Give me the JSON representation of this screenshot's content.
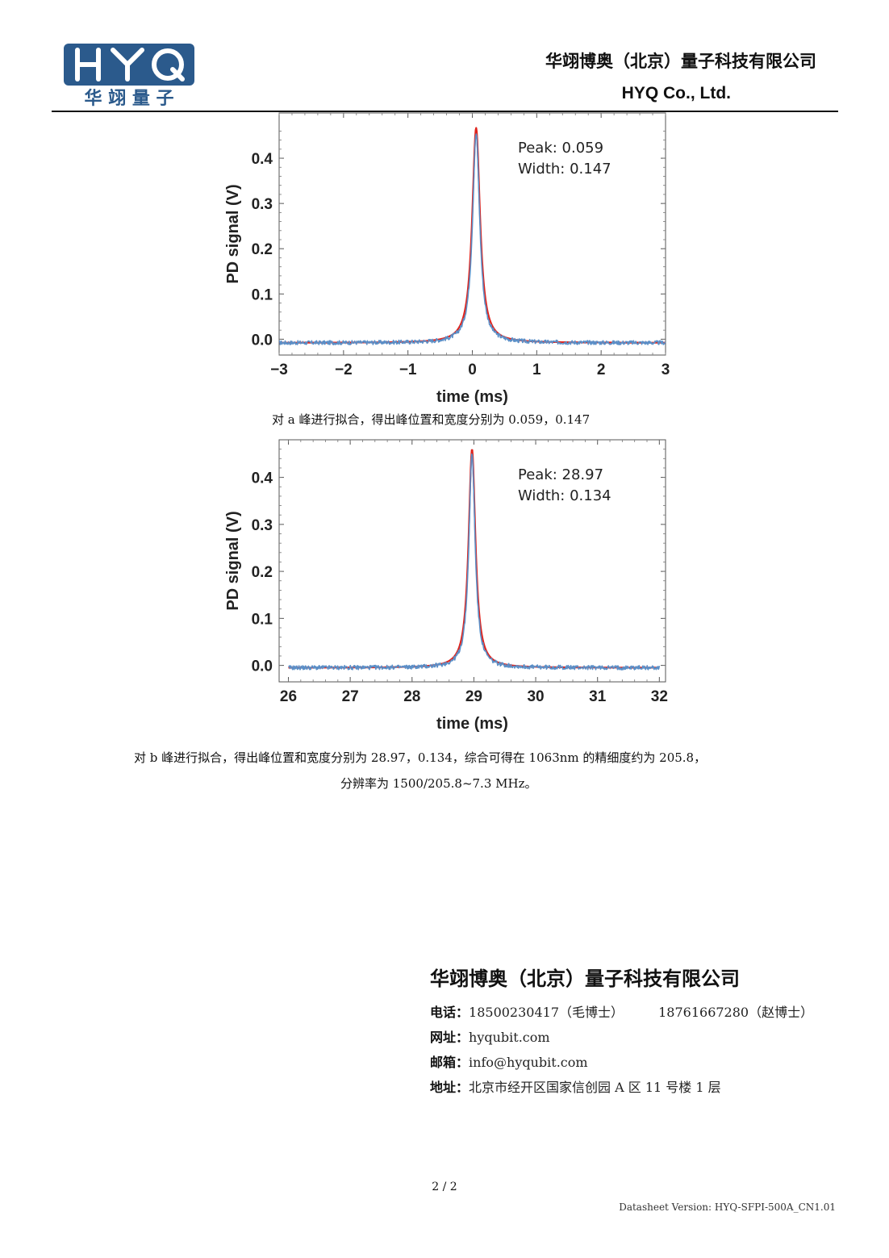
{
  "header": {
    "logo_text": "HYQ",
    "logo_subtitle": "华 翊 量 子",
    "company_cn": "华翊博奥（北京）量子科技有限公司",
    "company_en": "HYQ Co., Ltd."
  },
  "colors": {
    "brand_blue": "#2b5a8c",
    "fit_red": "#e0231c",
    "data_blue": "#5b8fc7"
  },
  "chart_data": [
    {
      "type": "line",
      "xlabel": "time (ms)",
      "ylabel": "PD signal (V)",
      "xlim": [
        -3,
        3
      ],
      "ylim": [
        -0.035,
        0.5
      ],
      "x_ticks": [
        -3,
        -2,
        -1,
        0,
        1,
        2,
        3
      ],
      "x_tick_labels": [
        "−3",
        "−2",
        "−1",
        "0",
        "1",
        "2",
        "3"
      ],
      "y_ticks": [
        0.0,
        0.1,
        0.2,
        0.3,
        0.4
      ],
      "y_tick_labels": [
        "0.0",
        "0.1",
        "0.2",
        "0.3",
        "0.4"
      ],
      "annotations": [
        "Peak: 0.059",
        "Width: 0.147"
      ],
      "series": [
        {
          "kind": "fit",
          "color": "#e0231c",
          "center": 0.059,
          "fwhm": 0.147,
          "amplitude": 0.475,
          "baseline": -0.008
        },
        {
          "kind": "data",
          "color": "#5b8fc7",
          "center": 0.059,
          "fwhm": 0.135,
          "amplitude": 0.462,
          "baseline": -0.008
        }
      ]
    },
    {
      "type": "line",
      "xlabel": "time (ms)",
      "ylabel": "PD signal (V)",
      "xlim": [
        25.85,
        32.1
      ],
      "ylim": [
        -0.035,
        0.48
      ],
      "x_ticks": [
        26,
        27,
        28,
        29,
        30,
        31,
        32
      ],
      "x_tick_labels": [
        "26",
        "27",
        "28",
        "29",
        "30",
        "31",
        "32"
      ],
      "y_ticks": [
        0.0,
        0.1,
        0.2,
        0.3,
        0.4
      ],
      "y_tick_labels": [
        "0.0",
        "0.1",
        "0.2",
        "0.3",
        "0.4"
      ],
      "annotations": [
        "Peak: 28.97",
        "Width: 0.134"
      ],
      "series": [
        {
          "kind": "fit",
          "color": "#e0231c",
          "center": 28.97,
          "fwhm": 0.134,
          "amplitude": 0.465,
          "baseline": -0.005
        },
        {
          "kind": "data",
          "color": "#5b8fc7",
          "center": 28.97,
          "fwhm": 0.122,
          "amplitude": 0.455,
          "baseline": -0.005
        }
      ]
    }
  ],
  "captions": {
    "a": "对 a 峰进行拟合，得出峰位置和宽度分别为 0.059，0.147",
    "b_line1": "对 b 峰进行拟合，得出峰位置和宽度分别为 28.97，0.134，综合可得在 1063nm 的精细度约为 205.8，",
    "b_line2": "分辨率为 1500/205.8~7.3 MHz。"
  },
  "footer": {
    "company": "华翊博奥（北京）量子科技有限公司",
    "phone_label": "电话",
    "phone1": "18500230417（毛博士）",
    "phone2": "18761667280（赵博士）",
    "web_label": "网址",
    "web": "hyqubit.com",
    "email_label": "邮箱",
    "email": "info@hyqubit.com",
    "address_label": "地址",
    "address": "北京市经开区国家信创园 A 区 11 号楼 1 层",
    "page_number": "2 / 2",
    "version": "Datasheet Version: HYQ-SFPI-500A_CN1.01"
  }
}
